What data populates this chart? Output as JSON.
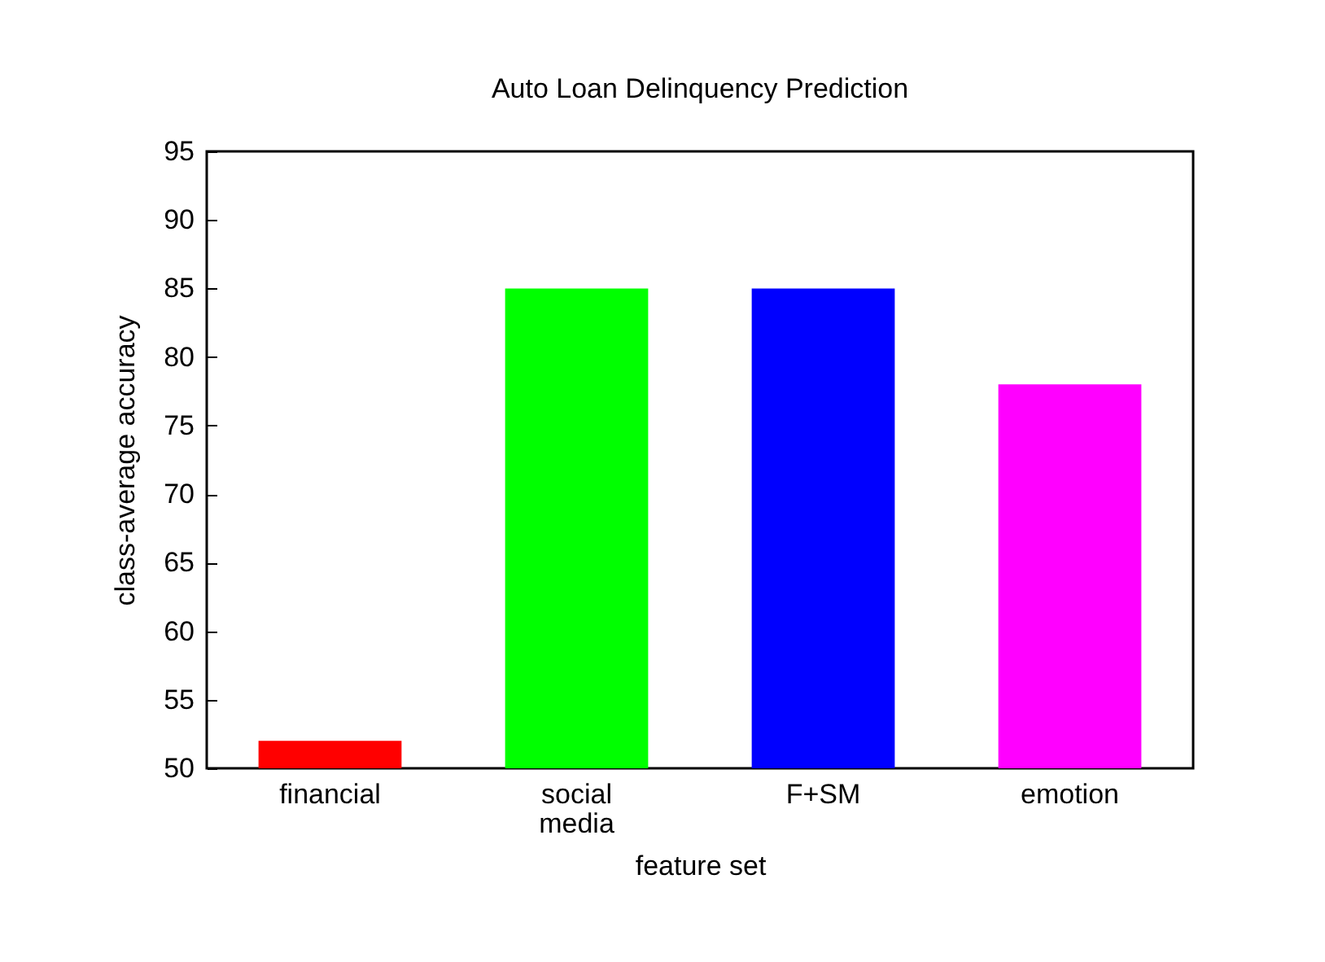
{
  "chart_data": {
    "type": "bar",
    "title": "Auto Loan Delinquency Prediction",
    "xlabel": "feature set",
    "ylabel": "class-average accuracy",
    "categories": [
      "financial",
      "social media",
      "F+SM",
      "emotion"
    ],
    "values": [
      52,
      85,
      85,
      78
    ],
    "colors": [
      "#ff0000",
      "#00ff00",
      "#0000ff",
      "#ff00ff"
    ],
    "ylim": [
      50,
      95
    ],
    "yticks": [
      50,
      55,
      60,
      65,
      70,
      75,
      80,
      85,
      90,
      95
    ],
    "grid": false,
    "legend": false
  }
}
